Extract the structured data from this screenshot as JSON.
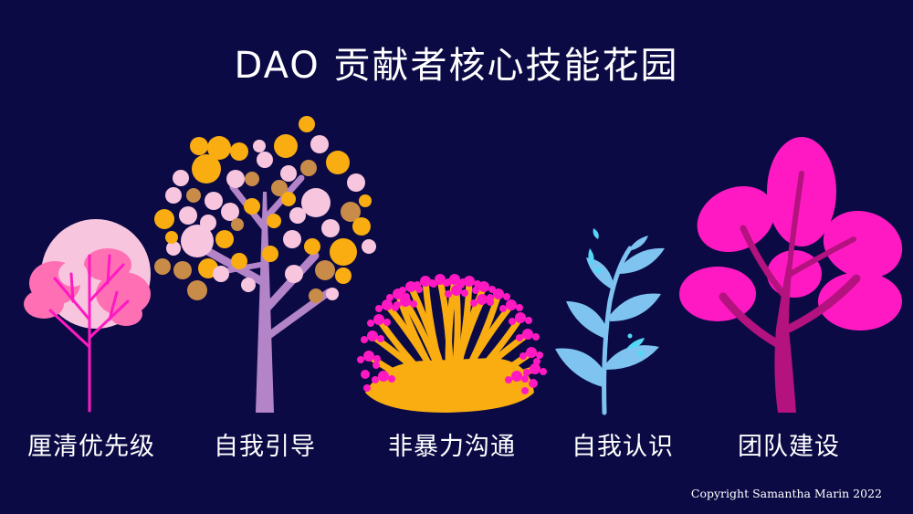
{
  "title": "DAO 贡献者核心技能花园",
  "labels": [
    "厘清优先级",
    "自我引导",
    "非暴力沟通",
    "自我认识",
    "团队建设"
  ],
  "copyright": "Copyright Samantha Marin 2022",
  "colors": {
    "background": "#0b0a45",
    "pale_pink": "#f7c5de",
    "pink": "#ff6fb4",
    "magenta": "#ff19c2",
    "dark_magenta": "#b3127f",
    "orange": "#f9ad11",
    "tan": "#c98c48",
    "lavender": "#b484c8",
    "light_blue": "#7fc4f0",
    "cyan": "#55d7f5",
    "white": "#ffffff"
  },
  "icons": [
    "pink-tree-icon",
    "bubble-tree-icon",
    "yellow-bush-icon",
    "blue-sprout-icon",
    "magenta-tree-icon"
  ]
}
